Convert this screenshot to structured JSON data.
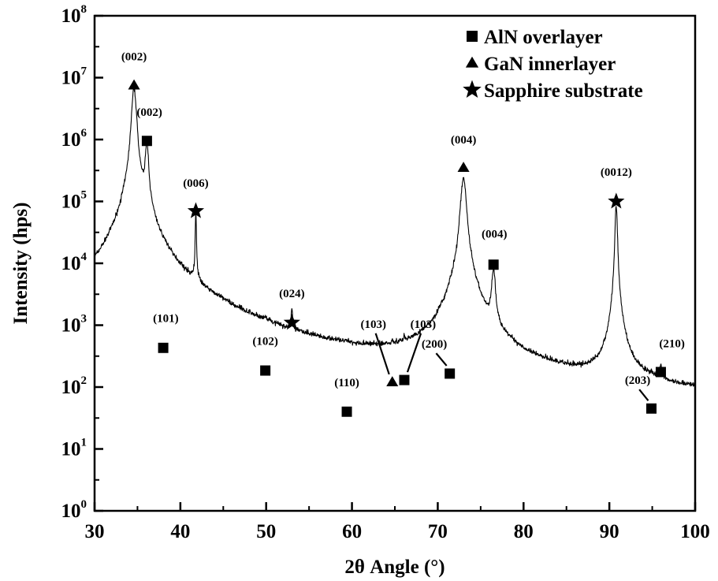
{
  "chart_data": {
    "type": "line",
    "xlabel": "2θ Angle (°)",
    "ylabel": "Intensity (hps)",
    "xlim": [
      30,
      100
    ],
    "ylim": [
      1,
      100000000
    ],
    "y_scale": "log",
    "grid": false,
    "legend_position": "top-right",
    "x_ticks": [
      "30",
      "40",
      "50",
      "60",
      "70",
      "80",
      "90",
      "100"
    ],
    "y_ticks": [
      {
        "base": "10",
        "exp": "0"
      },
      {
        "base": "10",
        "exp": "1"
      },
      {
        "base": "10",
        "exp": "2"
      },
      {
        "base": "10",
        "exp": "3"
      },
      {
        "base": "10",
        "exp": "4"
      },
      {
        "base": "10",
        "exp": "5"
      },
      {
        "base": "10",
        "exp": "6"
      },
      {
        "base": "10",
        "exp": "7"
      },
      {
        "base": "10",
        "exp": "8"
      }
    ],
    "legend": [
      {
        "marker": "square",
        "label": "AlN overlayer"
      },
      {
        "marker": "triangle",
        "label": "GaN innerlayer"
      },
      {
        "marker": "star",
        "label": "Sapphire substrate"
      }
    ],
    "baseline": 13,
    "peaks": [
      {
        "x": 34.6,
        "height": 6500000,
        "width": 0.25
      },
      {
        "x": 36.1,
        "height": 800000,
        "width": 0.18
      },
      {
        "x": 38.0,
        "height": 230,
        "width": 0.1
      },
      {
        "x": 41.8,
        "height": 65000,
        "width": 0.06
      },
      {
        "x": 49.9,
        "height": 120,
        "width": 0.1
      },
      {
        "x": 53.0,
        "height": 950,
        "width": 0.08
      },
      {
        "x": 59.4,
        "height": 20,
        "width": 0.1
      },
      {
        "x": 64.7,
        "height": 70,
        "width": 0.08
      },
      {
        "x": 66.1,
        "height": 100,
        "width": 0.1
      },
      {
        "x": 71.4,
        "height": 110,
        "width": 0.12
      },
      {
        "x": 73.0,
        "height": 230000,
        "width": 0.3
      },
      {
        "x": 76.5,
        "height": 7000,
        "width": 0.2
      },
      {
        "x": 90.8,
        "height": 85000,
        "width": 0.12
      },
      {
        "x": 94.9,
        "height": 12,
        "width": 0.1
      },
      {
        "x": 96.0,
        "height": 100,
        "width": 0.12
      }
    ],
    "markers": [
      {
        "type": "triangle",
        "x": 34.6,
        "y": 7500000,
        "label": "(002)",
        "label_x": 34.6,
        "label_y": 22000000
      },
      {
        "type": "square",
        "x": 36.1,
        "y": 950000,
        "label": "(002)",
        "label_x": 36.4,
        "label_y": 2800000
      },
      {
        "type": "square",
        "x": 38.0,
        "y": 430,
        "label": "(101)",
        "label_x": 38.3,
        "label_y": 1300
      },
      {
        "type": "star",
        "x": 41.8,
        "y": 70000,
        "label": "(006)",
        "label_x": 41.8,
        "label_y": 200000
      },
      {
        "type": "square",
        "x": 49.9,
        "y": 185,
        "label": "(102)",
        "label_x": 49.9,
        "label_y": 560
      },
      {
        "type": "star",
        "x": 53.0,
        "y": 1100,
        "label": "(024)",
        "label_x": 53.0,
        "label_y": 3300
      },
      {
        "type": "square",
        "x": 59.4,
        "y": 40,
        "label": "(110)",
        "label_x": 59.4,
        "label_y": 120
      },
      {
        "type": "triangle",
        "x": 64.7,
        "y": 120,
        "label": "(103)",
        "label_x": 62.5,
        "label_y": 1050
      },
      {
        "type": "square",
        "x": 66.1,
        "y": 130,
        "label": "(103)",
        "label_x": 68.3,
        "label_y": 1050
      },
      {
        "type": "square",
        "x": 71.4,
        "y": 165,
        "label": "(200)",
        "label_x": 69.6,
        "label_y": 500
      },
      {
        "type": "triangle",
        "x": 73.0,
        "y": 350000,
        "label": "(004)",
        "label_x": 73.0,
        "label_y": 1000000
      },
      {
        "type": "square",
        "x": 76.5,
        "y": 9500,
        "label": "(004)",
        "label_x": 76.6,
        "label_y": 30000
      },
      {
        "type": "star",
        "x": 90.8,
        "y": 100000,
        "label": "(0012)",
        "label_x": 90.8,
        "label_y": 300000
      },
      {
        "type": "square",
        "x": 94.9,
        "y": 45,
        "label": "(203)",
        "label_x": 93.3,
        "label_y": 130
      },
      {
        "type": "square",
        "x": 96.0,
        "y": 175,
        "label": "(210)",
        "label_x": 97.3,
        "label_y": 510
      }
    ]
  }
}
